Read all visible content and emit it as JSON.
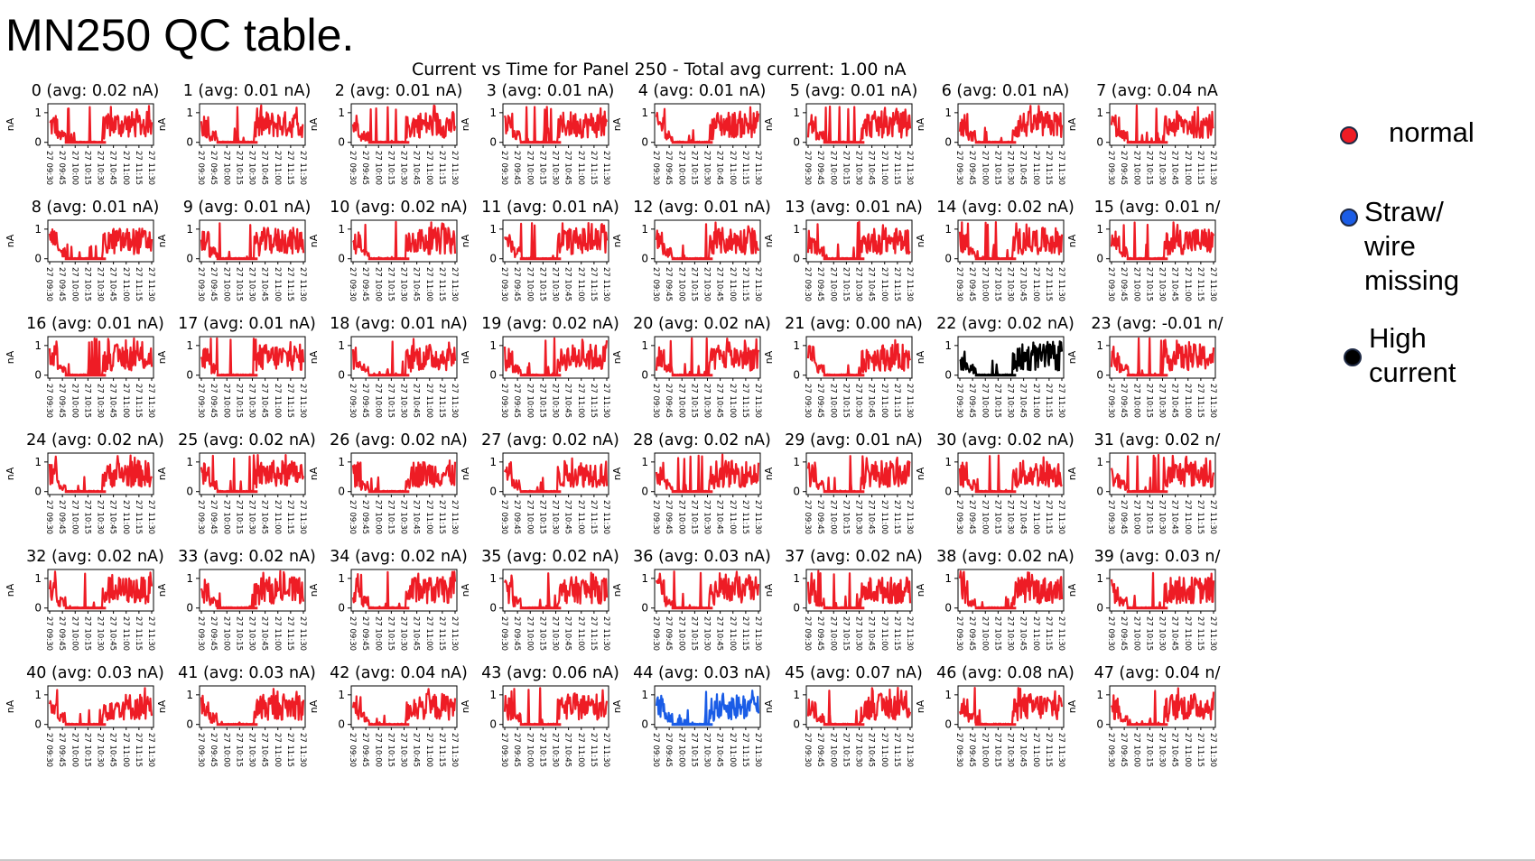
{
  "page": {
    "title": "MN250 QC table."
  },
  "legend": {
    "items": [
      {
        "label": "normal",
        "color": "#ee1c25"
      },
      {
        "label": "Straw/ wire\nmissing",
        "color": "#1a5ce6"
      },
      {
        "label": "High\ncurrent",
        "color": "#000000"
      }
    ]
  },
  "chart_data": {
    "type": "line",
    "title": "Current vs Time for Panel 250 - Total avg current: 1.00 nA",
    "ylabel": "nA",
    "yticks": [
      "0",
      "1"
    ],
    "ylim": [
      -0.1,
      1.3
    ],
    "xticks": [
      "27 09:30",
      "27 09:45",
      "27 10:00",
      "27 10:15",
      "27 10:30",
      "27 10:45",
      "27 11:00",
      "27 11:15",
      "27 11:30"
    ],
    "status_colors": {
      "normal": "#ee1c25",
      "missing": "#1a5ce6",
      "high": "#000000"
    },
    "panels": [
      {
        "title": "0 (avg: 0.02 nA)",
        "status": "normal"
      },
      {
        "title": "1 (avg: 0.01 nA)",
        "status": "normal"
      },
      {
        "title": "2 (avg: 0.01 nA)",
        "status": "normal"
      },
      {
        "title": "3 (avg: 0.01 nA)",
        "status": "normal"
      },
      {
        "title": "4 (avg: 0.01 nA)",
        "status": "normal"
      },
      {
        "title": "5 (avg: 0.01 nA)",
        "status": "normal"
      },
      {
        "title": "6 (avg: 0.01 nA)",
        "status": "normal"
      },
      {
        "title": "7 (avg: 0.04 nA",
        "status": "normal"
      },
      {
        "title": "8 (avg: 0.01 nA)",
        "status": "normal"
      },
      {
        "title": "9 (avg: 0.01 nA)",
        "status": "normal"
      },
      {
        "title": "10 (avg: 0.02 nA)",
        "status": "normal"
      },
      {
        "title": "11 (avg: 0.01 nA)",
        "status": "normal"
      },
      {
        "title": "12 (avg: 0.01 nA)",
        "status": "normal"
      },
      {
        "title": "13 (avg: 0.01 nA)",
        "status": "normal"
      },
      {
        "title": "14 (avg: 0.02 nA)",
        "status": "normal"
      },
      {
        "title": "15 (avg: 0.01 n/",
        "status": "normal"
      },
      {
        "title": "16 (avg: 0.01 nA)",
        "status": "normal"
      },
      {
        "title": "17 (avg: 0.01 nA)",
        "status": "normal"
      },
      {
        "title": "18 (avg: 0.01 nA)",
        "status": "normal"
      },
      {
        "title": "19 (avg: 0.02 nA)",
        "status": "normal"
      },
      {
        "title": "20 (avg: 0.02 nA)",
        "status": "normal"
      },
      {
        "title": "21 (avg: 0.00 nA)",
        "status": "normal"
      },
      {
        "title": "22 (avg: 0.02 nA)",
        "status": "high"
      },
      {
        "title": "23 (avg: -0.01 n/",
        "status": "normal"
      },
      {
        "title": "24 (avg: 0.02 nA)",
        "status": "normal"
      },
      {
        "title": "25 (avg: 0.02 nA)",
        "status": "normal"
      },
      {
        "title": "26 (avg: 0.02 nA)",
        "status": "normal"
      },
      {
        "title": "27 (avg: 0.02 nA)",
        "status": "normal"
      },
      {
        "title": "28 (avg: 0.02 nA)",
        "status": "normal"
      },
      {
        "title": "29 (avg: 0.01 nA)",
        "status": "normal"
      },
      {
        "title": "30 (avg: 0.02 nA)",
        "status": "normal"
      },
      {
        "title": "31 (avg: 0.02 n/",
        "status": "normal"
      },
      {
        "title": "32 (avg: 0.02 nA)",
        "status": "normal"
      },
      {
        "title": "33 (avg: 0.02 nA)",
        "status": "normal"
      },
      {
        "title": "34 (avg: 0.02 nA)",
        "status": "normal"
      },
      {
        "title": "35 (avg: 0.02 nA)",
        "status": "normal"
      },
      {
        "title": "36 (avg: 0.03 nA)",
        "status": "normal"
      },
      {
        "title": "37 (avg: 0.02 nA)",
        "status": "normal"
      },
      {
        "title": "38 (avg: 0.02 nA)",
        "status": "normal"
      },
      {
        "title": "39 (avg: 0.03 n/",
        "status": "normal"
      },
      {
        "title": "40 (avg: 0.03 nA)",
        "status": "normal"
      },
      {
        "title": "41 (avg: 0.03 nA)",
        "status": "normal"
      },
      {
        "title": "42 (avg: 0.04 nA)",
        "status": "normal"
      },
      {
        "title": "43 (avg: 0.06 nA)",
        "status": "normal"
      },
      {
        "title": "44 (avg: 0.03 nA)",
        "status": "missing"
      },
      {
        "title": "45 (avg: 0.07 nA)",
        "status": "normal"
      },
      {
        "title": "46 (avg: 0.08 nA)",
        "status": "normal"
      },
      {
        "title": "47 (avg: 0.04 n/",
        "status": "normal"
      }
    ]
  }
}
